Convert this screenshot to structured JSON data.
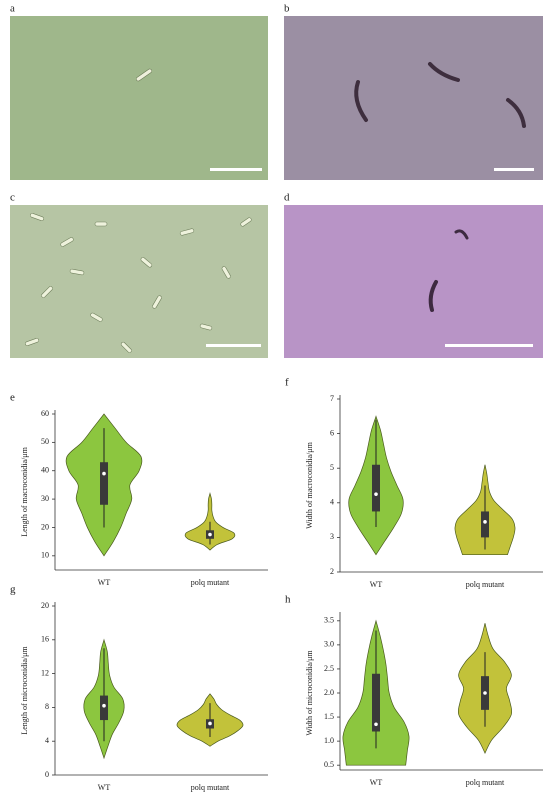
{
  "panels": [
    {
      "label": "a"
    },
    {
      "label": "b"
    },
    {
      "label": "c"
    },
    {
      "label": "d"
    }
  ],
  "chart_data": [
    {
      "type": "violin",
      "label": "e",
      "ylabel": "Length of macroconidia/μm",
      "categories": [
        "WT",
        "polq mutant"
      ],
      "ylim": [
        5,
        60
      ],
      "yticks": [
        10,
        20,
        30,
        40,
        50,
        60
      ],
      "groups": [
        {
          "color": "#8cc63f",
          "range": [
            10,
            60
          ],
          "density": [
            0,
            0.25,
            0.45,
            0.6,
            0.75,
            0.7,
            0.95,
            1,
            0.6,
            0.3,
            0
          ],
          "box": {
            "whisker_low": 20,
            "q1": 28,
            "median": 39,
            "q3": 43,
            "whisker_high": 55
          }
        },
        {
          "color": "#c2c23a",
          "range": [
            12,
            32
          ],
          "density": [
            0,
            0.2,
            0.6,
            0.65,
            0.35,
            0.15,
            0.08,
            0.05,
            0.05,
            0.04,
            0
          ],
          "box": {
            "whisker_low": 14,
            "q1": 16,
            "median": 17.5,
            "q3": 19,
            "whisker_high": 22
          }
        }
      ]
    },
    {
      "type": "violin",
      "label": "f",
      "ylabel": "Width of macroconidia/μm",
      "categories": [
        "WT",
        "polq mutant"
      ],
      "ylim": [
        2,
        7
      ],
      "yticks": [
        2,
        3,
        4,
        5,
        6,
        7
      ],
      "groups": [
        {
          "color": "#8cc63f",
          "range": [
            2.5,
            6.5
          ],
          "density": [
            0,
            0.3,
            0.6,
            0.85,
            0.9,
            0.7,
            0.5,
            0.35,
            0.25,
            0.15,
            0
          ],
          "box": {
            "whisker_low": 3.3,
            "q1": 3.75,
            "median": 4.25,
            "q3": 5.1,
            "whisker_high": 6.4
          }
        },
        {
          "color": "#c2c23a",
          "range": [
            2.5,
            5.1
          ],
          "density": [
            0.75,
            0.85,
            0.95,
            1,
            0.9,
            0.6,
            0.3,
            0.15,
            0.1,
            0.06,
            0
          ],
          "box": {
            "whisker_low": 2.65,
            "q1": 3.0,
            "median": 3.45,
            "q3": 3.75,
            "whisker_high": 4.5
          }
        }
      ]
    },
    {
      "type": "violin",
      "label": "g",
      "ylabel": "Length of microconidia/μm",
      "categories": [
        "WT",
        "polq mutant"
      ],
      "ylim": [
        0,
        20
      ],
      "yticks": [
        0,
        4,
        8,
        12,
        16,
        20
      ],
      "groups": [
        {
          "color": "#8cc63f",
          "range": [
            2,
            16
          ],
          "density": [
            0,
            0.12,
            0.25,
            0.45,
            0.6,
            0.57,
            0.3,
            0.17,
            0.13,
            0.1,
            0
          ],
          "box": {
            "whisker_low": 4,
            "q1": 6.5,
            "median": 8.2,
            "q3": 9.4,
            "whisker_high": 15
          }
        },
        {
          "color": "#c2c23a",
          "range": [
            3.4,
            9.6
          ],
          "density": [
            0,
            0.25,
            0.6,
            0.85,
            1,
            0.9,
            0.6,
            0.35,
            0.2,
            0.12,
            0
          ],
          "box": {
            "whisker_low": 4.5,
            "q1": 5.5,
            "median": 6.1,
            "q3": 6.6,
            "whisker_high": 8.5
          }
        }
      ]
    },
    {
      "type": "violin",
      "label": "h",
      "ylabel": "Width of microconidia/μm",
      "categories": [
        "WT",
        "polq mutant"
      ],
      "ylim": [
        0.4,
        3.6
      ],
      "yticks": [
        0.5,
        {
          "value": 1,
          "label": "1.0"
        },
        1.5,
        {
          "value": 2,
          "label": "2.0"
        },
        2.5,
        {
          "value": 3,
          "label": "3.0"
        },
        3.5
      ],
      "groups": [
        {
          "color": "#8cc63f",
          "range": [
            0.5,
            3.5
          ],
          "density": [
            0.9,
            0.95,
            1,
            0.85,
            0.55,
            0.4,
            0.35,
            0.3,
            0.22,
            0.12,
            0
          ],
          "box": {
            "whisker_low": 0.85,
            "q1": 1.2,
            "median": 1.35,
            "q3": 2.4,
            "whisker_high": 3.3
          }
        },
        {
          "color": "#c2c23a",
          "range": [
            0.75,
            3.45
          ],
          "density": [
            0,
            0.2,
            0.55,
            0.8,
            0.75,
            0.65,
            0.8,
            0.6,
            0.25,
            0.1,
            0
          ],
          "box": {
            "whisker_low": 1.3,
            "q1": 1.65,
            "median": 2.0,
            "q3": 2.35,
            "whisker_high": 2.85
          }
        }
      ]
    }
  ]
}
